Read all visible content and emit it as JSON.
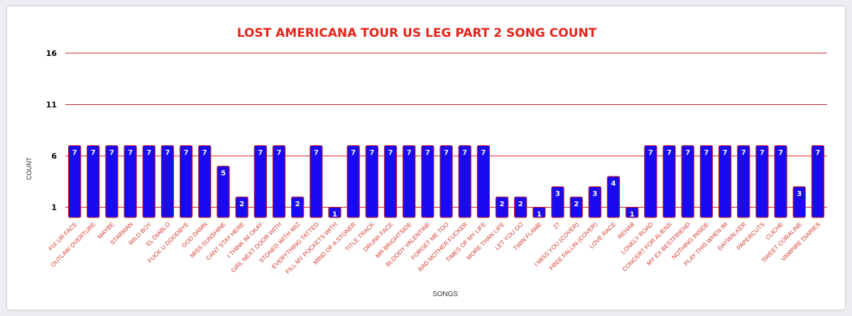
{
  "chart_data": {
    "type": "bar",
    "title": "LOST AMERICANA TOUR US LEG PART 2 SONG COUNT",
    "xlabel": "SONGS",
    "ylabel": "COUNT",
    "yticks": [
      1,
      6,
      11,
      16
    ],
    "ylim": [
      0,
      16
    ],
    "grid": true,
    "legend": "none",
    "colors": {
      "bar_fill": "#1a0af0",
      "bar_stroke": "#d01818",
      "title": "#e8231a",
      "grid": "#cc2222",
      "tick_label": "#d33b30",
      "data_label": "#ffffff"
    },
    "categories": [
      "FIX UR FACE",
      "OUTLAW OVERTURE",
      "MAYBE",
      "STARMAN",
      "WILD BOY",
      "EL DIABLO",
      "FUCK U GOODBYE",
      "GOD DAMN",
      "MISS SUNSHINE",
      "CANT STAY HERE",
      "I THINK IM OKAY",
      "GIRL NEXT DOOR WITH",
      "STONED WITH WIZ",
      "EVERYTHING TATTED",
      "FILL MY POCKETS WITH",
      "MIND OF A STONER",
      "TITLE TRACK",
      "DRUNK FACE",
      "MR BRIGHTSIDE",
      "BLOODY VALENTINE",
      "FORGET ME TOO",
      "BAD MOTHER FUCKER",
      "TIMES OF MY LIFE",
      "MORE THAN LIFE",
      "LET YOU GO",
      "TWIN FLAME",
      "27",
      "I MISS YOU (COVER)",
      "FREE FALLIN (COVER)",
      "LOVE RACE",
      "REHAB",
      "LONELY ROAD",
      "CONCERT FOR ALIENS",
      "MY EX BESTFRIEND",
      "NOTHING INSIDE",
      "PLAY THIS WHEN IM",
      "DAYWALKER",
      "PAPERCUTS",
      "CLICHE",
      "SWEET CORALINE",
      "VAMPIRE DIARIES"
    ],
    "values": [
      7,
      7,
      7,
      7,
      7,
      7,
      7,
      7,
      5,
      2,
      7,
      7,
      2,
      7,
      1,
      7,
      7,
      7,
      7,
      7,
      7,
      7,
      7,
      2,
      2,
      1,
      3,
      2,
      3,
      4,
      1,
      7,
      7,
      7,
      7,
      7,
      7,
      7,
      7,
      3,
      7
    ]
  }
}
